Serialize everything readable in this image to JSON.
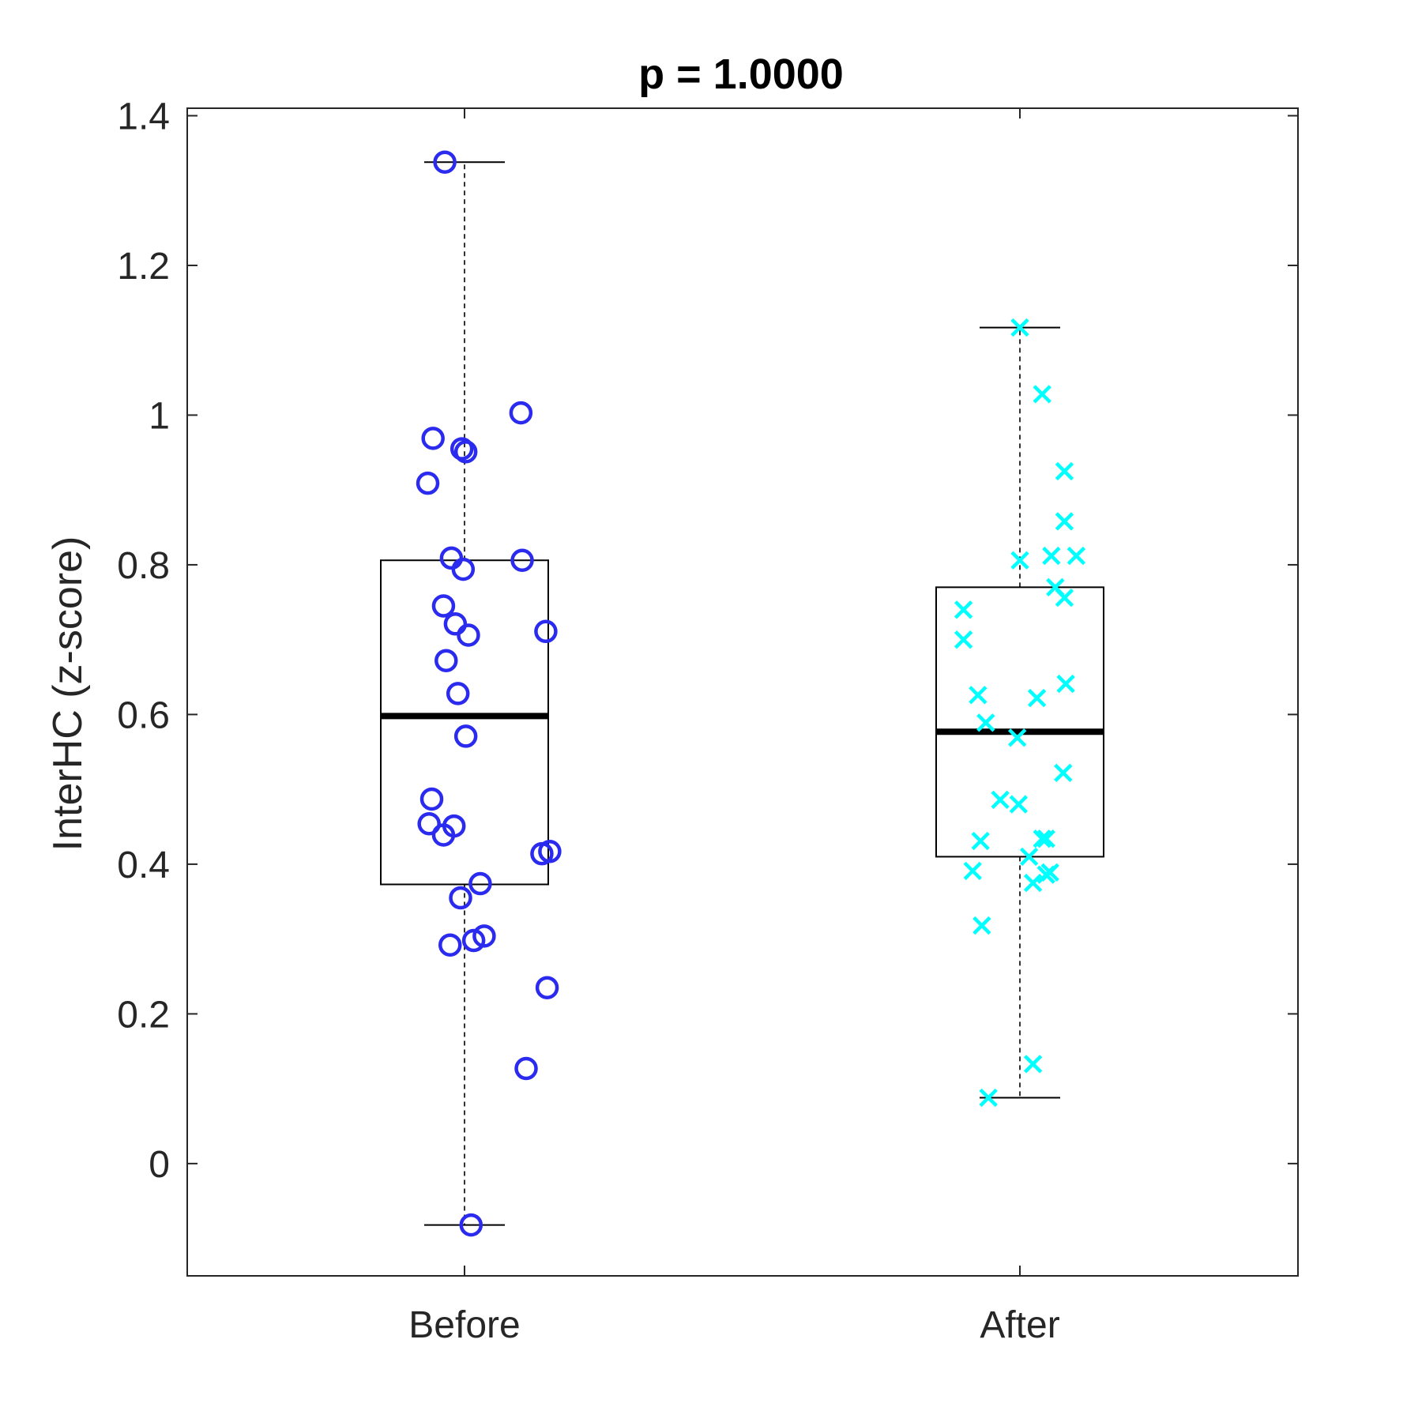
{
  "chart_data": {
    "type": "box",
    "title": "p = 1.0000",
    "xlabel": "",
    "ylabel": "InterHC (z-score)",
    "ylim": [
      -0.15,
      1.41
    ],
    "yticks": [
      0,
      0.2,
      0.4,
      0.6,
      0.8,
      1,
      1.2,
      1.4
    ],
    "ytick_labels": [
      "0",
      "0.2",
      "0.4",
      "0.6",
      "0.8",
      "1",
      "1.2",
      "1.4"
    ],
    "grid": false,
    "categories": [
      "Before",
      "After"
    ],
    "series": [
      {
        "category": "Before",
        "marker": "circle",
        "color": "#2b2bef",
        "box": {
          "q1": 0.373,
          "median": 0.598,
          "q3": 0.806,
          "whisker_low": -0.082,
          "whisker_high": 1.338
        },
        "points": [
          {
            "jitter": -0.15,
            "y": 1.338
          },
          {
            "jitter": 0.43,
            "y": 1.003
          },
          {
            "jitter": -0.24,
            "y": 0.969
          },
          {
            "jitter": -0.02,
            "y": 0.955
          },
          {
            "jitter": 0.01,
            "y": 0.951
          },
          {
            "jitter": -0.28,
            "y": 0.909
          },
          {
            "jitter": -0.1,
            "y": 0.809
          },
          {
            "jitter": 0.44,
            "y": 0.806
          },
          {
            "jitter": -0.01,
            "y": 0.794
          },
          {
            "jitter": -0.16,
            "y": 0.745
          },
          {
            "jitter": -0.07,
            "y": 0.721
          },
          {
            "jitter": 0.62,
            "y": 0.711
          },
          {
            "jitter": 0.03,
            "y": 0.706
          },
          {
            "jitter": -0.14,
            "y": 0.672
          },
          {
            "jitter": -0.05,
            "y": 0.628
          },
          {
            "jitter": 0.01,
            "y": 0.571
          },
          {
            "jitter": -0.25,
            "y": 0.487
          },
          {
            "jitter": -0.27,
            "y": 0.454
          },
          {
            "jitter": -0.08,
            "y": 0.451
          },
          {
            "jitter": -0.16,
            "y": 0.439
          },
          {
            "jitter": 0.65,
            "y": 0.417
          },
          {
            "jitter": 0.59,
            "y": 0.414
          },
          {
            "jitter": 0.12,
            "y": 0.374
          },
          {
            "jitter": -0.03,
            "y": 0.355
          },
          {
            "jitter": 0.15,
            "y": 0.304
          },
          {
            "jitter": 0.07,
            "y": 0.298
          },
          {
            "jitter": -0.11,
            "y": 0.292
          },
          {
            "jitter": 0.63,
            "y": 0.235
          },
          {
            "jitter": 0.47,
            "y": 0.127
          },
          {
            "jitter": 0.05,
            "y": -0.082
          }
        ]
      },
      {
        "category": "After",
        "marker": "x",
        "color": "#00ffff",
        "box": {
          "q1": 0.41,
          "median": 0.577,
          "q3": 0.77,
          "whisker_low": 0.088,
          "whisker_high": 1.117
        },
        "points": [
          {
            "jitter": 0.0,
            "y": 1.117
          },
          {
            "jitter": 0.17,
            "y": 1.028
          },
          {
            "jitter": 0.34,
            "y": 0.925
          },
          {
            "jitter": 0.34,
            "y": 0.858
          },
          {
            "jitter": 0.24,
            "y": 0.812
          },
          {
            "jitter": 0.43,
            "y": 0.812
          },
          {
            "jitter": 0.0,
            "y": 0.806
          },
          {
            "jitter": 0.27,
            "y": 0.77
          },
          {
            "jitter": 0.34,
            "y": 0.756
          },
          {
            "jitter": -0.43,
            "y": 0.74
          },
          {
            "jitter": -0.43,
            "y": 0.7
          },
          {
            "jitter": 0.35,
            "y": 0.641
          },
          {
            "jitter": -0.32,
            "y": 0.626
          },
          {
            "jitter": 0.13,
            "y": 0.622
          },
          {
            "jitter": -0.26,
            "y": 0.589
          },
          {
            "jitter": -0.02,
            "y": 0.569
          },
          {
            "jitter": 0.33,
            "y": 0.522
          },
          {
            "jitter": -0.15,
            "y": 0.486
          },
          {
            "jitter": -0.01,
            "y": 0.48
          },
          {
            "jitter": 0.17,
            "y": 0.434
          },
          {
            "jitter": 0.2,
            "y": 0.434
          },
          {
            "jitter": -0.3,
            "y": 0.431
          },
          {
            "jitter": 0.07,
            "y": 0.41
          },
          {
            "jitter": -0.36,
            "y": 0.391
          },
          {
            "jitter": 0.23,
            "y": 0.389
          },
          {
            "jitter": 0.2,
            "y": 0.386
          },
          {
            "jitter": 0.1,
            "y": 0.375
          },
          {
            "jitter": -0.29,
            "y": 0.318
          },
          {
            "jitter": 0.1,
            "y": 0.133
          },
          {
            "jitter": -0.24,
            "y": 0.088
          }
        ]
      }
    ]
  }
}
